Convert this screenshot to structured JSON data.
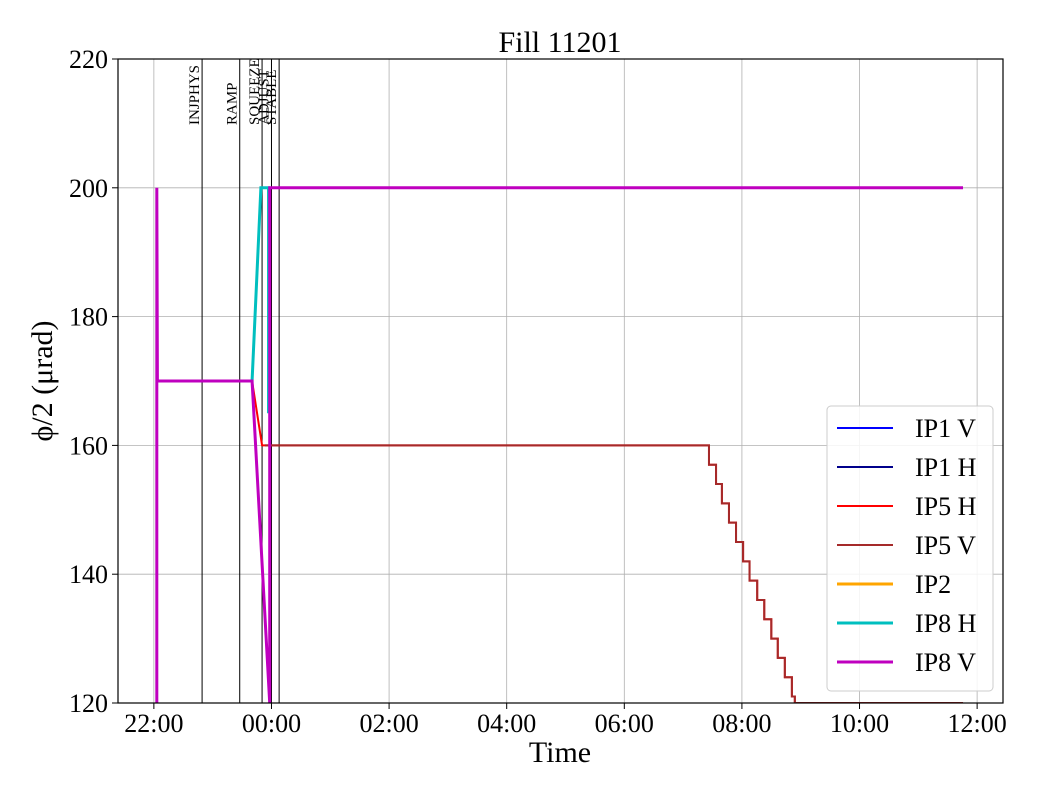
{
  "chart_data": {
    "type": "line",
    "title": "Fill 11201",
    "xlabel": "Time",
    "ylabel": "ϕ/2 (μrad)",
    "xlim": [
      21.39,
      36.44
    ],
    "xticks": [
      {
        "value": 22,
        "label": "22:00"
      },
      {
        "value": 24,
        "label": "00:00"
      },
      {
        "value": 26,
        "label": "02:00"
      },
      {
        "value": 28,
        "label": "04:00"
      },
      {
        "value": 30,
        "label": "06:00"
      },
      {
        "value": 32,
        "label": "08:00"
      },
      {
        "value": 34,
        "label": "10:00"
      },
      {
        "value": 36,
        "label": "12:00"
      }
    ],
    "ylim": [
      120,
      220
    ],
    "yticks": [
      120,
      140,
      160,
      180,
      200,
      220
    ],
    "grid": true,
    "legend": "lower right",
    "events": [
      {
        "label": "INJPHYS",
        "x": 22.82
      },
      {
        "label": "RAMP",
        "x": 23.46
      },
      {
        "label": "SQUEEZE",
        "x": 23.84
      },
      {
        "label": "ADJUST",
        "x": 24.0
      },
      {
        "label": "STABLE",
        "x": 24.13
      }
    ],
    "series": [
      {
        "name": "IP1 V",
        "color": "#0000ff",
        "width": 2,
        "x": [],
        "values": []
      },
      {
        "name": "IP1 H",
        "color": "#00008b",
        "width": 2,
        "x": [],
        "values": []
      },
      {
        "name": "IP5 H",
        "color": "#ff0000",
        "width": 2,
        "x": [
          22.05,
          23.67,
          23.84,
          31.44,
          31.44,
          31.56,
          31.56,
          31.66,
          31.66,
          31.78,
          31.78,
          31.9,
          31.9,
          32.02,
          32.02,
          32.13,
          32.13,
          32.26,
          32.26,
          32.38,
          32.38,
          32.5,
          32.5,
          32.61,
          32.61,
          32.73,
          32.73,
          32.85,
          32.85,
          32.9,
          32.9,
          35.76
        ],
        "values": [
          170,
          170,
          160,
          160,
          157,
          157,
          154,
          154,
          151,
          151,
          148,
          148,
          145,
          145,
          142,
          142,
          139,
          139,
          136,
          136,
          133,
          133,
          130,
          130,
          127,
          127,
          124,
          124,
          121,
          121,
          120,
          120
        ]
      },
      {
        "name": "IP5 V",
        "color": "#a52a2a",
        "width": 2,
        "x": [
          23.89,
          31.44,
          31.44,
          31.56,
          31.56,
          31.66,
          31.66,
          31.78,
          31.78,
          31.9,
          31.9,
          32.02,
          32.02,
          32.13,
          32.13,
          32.26,
          32.26,
          32.38,
          32.38,
          32.5,
          32.5,
          32.61,
          32.61,
          32.73,
          32.73,
          32.85,
          32.85,
          32.9,
          32.9,
          35.76
        ],
        "values": [
          160,
          160,
          157,
          157,
          154,
          154,
          151,
          151,
          148,
          148,
          145,
          145,
          142,
          142,
          139,
          139,
          136,
          136,
          133,
          133,
          130,
          130,
          127,
          127,
          124,
          124,
          121,
          121,
          120,
          120
        ]
      },
      {
        "name": "IP2",
        "color": "#ffa500",
        "width": 3,
        "x": [],
        "values": []
      },
      {
        "name": "IP8 H",
        "color": "#00bfbf",
        "width": 3,
        "x": [
          22.05,
          23.67,
          23.82,
          23.95,
          23.95
        ],
        "values": [
          170,
          170,
          200,
          200,
          165
        ]
      },
      {
        "name": "IP8 V",
        "color": "#bf00bf",
        "width": 3,
        "x": [
          22.05,
          22.05,
          22.06,
          23.67,
          23.97,
          23.97,
          24.0,
          35.76
        ],
        "values": [
          120,
          200,
          170,
          170,
          120,
          200,
          200,
          200
        ]
      }
    ]
  }
}
